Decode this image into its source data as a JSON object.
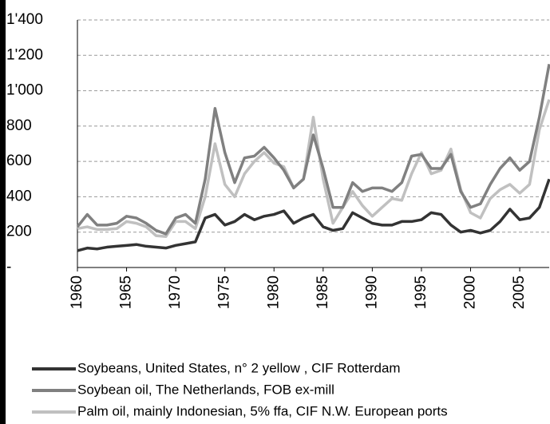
{
  "chart_data": {
    "type": "line",
    "x": [
      1960,
      1961,
      1962,
      1963,
      1964,
      1965,
      1966,
      1967,
      1968,
      1969,
      1970,
      1971,
      1972,
      1973,
      1974,
      1975,
      1976,
      1977,
      1978,
      1979,
      1980,
      1981,
      1982,
      1983,
      1984,
      1985,
      1986,
      1987,
      1988,
      1989,
      1990,
      1991,
      1992,
      1993,
      1994,
      1995,
      1996,
      1997,
      1998,
      1999,
      2000,
      2001,
      2002,
      2003,
      2004,
      2005,
      2006,
      2007,
      2008
    ],
    "series": [
      {
        "name": "Soybeans, United States, n° 2 yellow , CIF Rotterdam",
        "color": "#333333",
        "values": [
          95,
          110,
          105,
          115,
          120,
          125,
          130,
          120,
          115,
          110,
          125,
          135,
          145,
          280,
          300,
          240,
          260,
          300,
          270,
          290,
          300,
          320,
          250,
          280,
          300,
          230,
          210,
          220,
          310,
          280,
          250,
          240,
          240,
          260,
          260,
          270,
          310,
          300,
          240,
          200,
          210,
          195,
          210,
          260,
          330,
          270,
          280,
          340,
          500
        ]
      },
      {
        "name": "Soybean oil, The Netherlands, FOB ex-mill",
        "color": "#808080",
        "values": [
          230,
          300,
          240,
          240,
          250,
          290,
          280,
          250,
          210,
          190,
          280,
          300,
          250,
          500,
          900,
          650,
          480,
          620,
          630,
          680,
          620,
          550,
          450,
          500,
          750,
          560,
          340,
          340,
          480,
          430,
          450,
          450,
          430,
          480,
          630,
          640,
          560,
          560,
          640,
          430,
          340,
          360,
          470,
          560,
          620,
          550,
          600,
          850,
          1150
        ]
      },
      {
        "name": "Palm oil, mainly Indonesian, 5% ffa, CIF N.W. European ports",
        "color": "#c0c0c0",
        "values": [
          220,
          230,
          215,
          215,
          220,
          260,
          250,
          230,
          180,
          175,
          260,
          260,
          220,
          400,
          700,
          470,
          400,
          530,
          600,
          650,
          590,
          570,
          450,
          500,
          850,
          500,
          250,
          340,
          430,
          350,
          290,
          340,
          390,
          380,
          530,
          650,
          530,
          550,
          670,
          440,
          310,
          280,
          390,
          440,
          470,
          420,
          470,
          780,
          950
        ]
      }
    ],
    "xlim": [
      1960,
      2008
    ],
    "xticks": [
      1960,
      1965,
      1970,
      1975,
      1980,
      1985,
      1990,
      1995,
      2000,
      2005
    ],
    "ylim": [
      0,
      1400
    ],
    "yticks": [
      {
        "value": 0,
        "label": "-"
      },
      200,
      400,
      600,
      800,
      {
        "value": 1000,
        "label": "1'000"
      },
      {
        "value": 1200,
        "label": "1'200"
      },
      {
        "value": 1400,
        "label": "1'400"
      }
    ],
    "grid": true
  }
}
